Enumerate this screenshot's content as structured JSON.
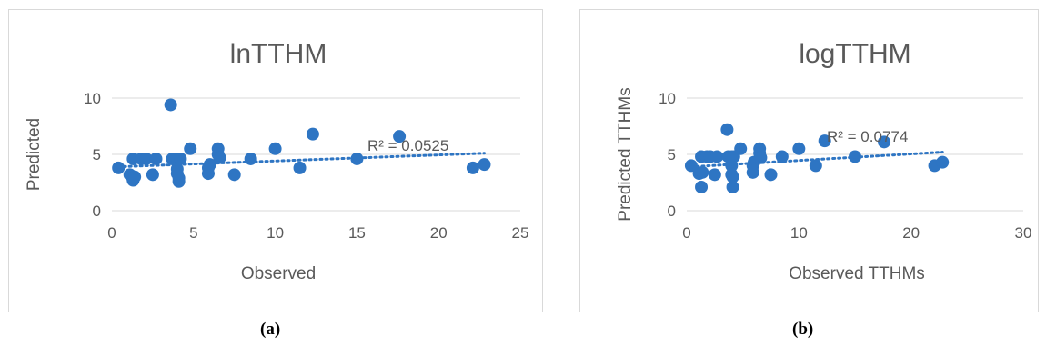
{
  "chart_data": [
    {
      "type": "scatter",
      "title": "lnTTHM",
      "xlabel": "Observed",
      "ylabel": "Predicted",
      "xlim": [
        0,
        25
      ],
      "ylim": [
        0,
        10
      ],
      "xticks": [
        "0",
        "5",
        "10",
        "15",
        "20",
        "25"
      ],
      "yticks": [
        "0",
        "5",
        "10"
      ],
      "grid": true,
      "color": "#2e75c3",
      "trendline": {
        "type": "linear",
        "style": "dotted",
        "x": [
          0.4,
          22.8
        ],
        "y": [
          3.9,
          5.1
        ]
      },
      "annotation": "R² = 0.0525",
      "caption": "(a)",
      "points": [
        {
          "x": 0.4,
          "y": 3.8
        },
        {
          "x": 1.1,
          "y": 3.2
        },
        {
          "x": 1.3,
          "y": 4.6
        },
        {
          "x": 1.3,
          "y": 2.7
        },
        {
          "x": 1.4,
          "y": 3.0
        },
        {
          "x": 1.8,
          "y": 4.6
        },
        {
          "x": 2.1,
          "y": 4.6
        },
        {
          "x": 2.5,
          "y": 3.2
        },
        {
          "x": 2.7,
          "y": 4.6
        },
        {
          "x": 3.6,
          "y": 9.4
        },
        {
          "x": 3.7,
          "y": 4.6
        },
        {
          "x": 4.0,
          "y": 4.6
        },
        {
          "x": 4.0,
          "y": 3.3
        },
        {
          "x": 4.0,
          "y": 3.7
        },
        {
          "x": 4.1,
          "y": 2.9
        },
        {
          "x": 4.1,
          "y": 2.6
        },
        {
          "x": 4.2,
          "y": 4.6
        },
        {
          "x": 4.8,
          "y": 5.5
        },
        {
          "x": 5.9,
          "y": 3.3
        },
        {
          "x": 5.9,
          "y": 3.8
        },
        {
          "x": 6.0,
          "y": 4.1
        },
        {
          "x": 6.5,
          "y": 5.5
        },
        {
          "x": 6.5,
          "y": 5.0
        },
        {
          "x": 6.6,
          "y": 4.7
        },
        {
          "x": 7.5,
          "y": 3.2
        },
        {
          "x": 8.5,
          "y": 4.6
        },
        {
          "x": 10.0,
          "y": 5.5
        },
        {
          "x": 11.5,
          "y": 3.8
        },
        {
          "x": 12.3,
          "y": 6.8
        },
        {
          "x": 15.0,
          "y": 4.6
        },
        {
          "x": 17.6,
          "y": 6.6
        },
        {
          "x": 22.1,
          "y": 3.8
        },
        {
          "x": 22.8,
          "y": 4.1
        }
      ]
    },
    {
      "type": "scatter",
      "title": "logTTHM",
      "xlabel": "Observed TTHMs",
      "ylabel": "Predicted TTHMs",
      "xlim": [
        0,
        30
      ],
      "ylim": [
        0,
        10
      ],
      "xticks": [
        "0",
        "10",
        "20",
        "30"
      ],
      "yticks": [
        "0",
        "5",
        "10"
      ],
      "grid": true,
      "color": "#2e75c3",
      "trendline": {
        "type": "linear",
        "style": "dotted",
        "x": [
          0.4,
          22.8
        ],
        "y": [
          3.9,
          5.2
        ]
      },
      "annotation": "R² = 0.0774",
      "caption": "(b)",
      "points": [
        {
          "x": 0.4,
          "y": 4.0
        },
        {
          "x": 1.1,
          "y": 3.3
        },
        {
          "x": 1.3,
          "y": 4.8
        },
        {
          "x": 1.3,
          "y": 2.1
        },
        {
          "x": 1.4,
          "y": 3.4
        },
        {
          "x": 1.8,
          "y": 4.8
        },
        {
          "x": 2.1,
          "y": 4.8
        },
        {
          "x": 2.5,
          "y": 3.2
        },
        {
          "x": 2.7,
          "y": 4.8
        },
        {
          "x": 3.6,
          "y": 7.2
        },
        {
          "x": 3.7,
          "y": 4.8
        },
        {
          "x": 4.0,
          "y": 4.8
        },
        {
          "x": 4.0,
          "y": 3.2
        },
        {
          "x": 4.0,
          "y": 4.0
        },
        {
          "x": 4.1,
          "y": 2.1
        },
        {
          "x": 4.1,
          "y": 3.0
        },
        {
          "x": 4.2,
          "y": 4.8
        },
        {
          "x": 4.8,
          "y": 5.5
        },
        {
          "x": 5.9,
          "y": 3.4
        },
        {
          "x": 5.9,
          "y": 4.0
        },
        {
          "x": 6.0,
          "y": 4.3
        },
        {
          "x": 6.5,
          "y": 5.5
        },
        {
          "x": 6.5,
          "y": 5.1
        },
        {
          "x": 6.6,
          "y": 4.7
        },
        {
          "x": 7.5,
          "y": 3.2
        },
        {
          "x": 8.5,
          "y": 4.8
        },
        {
          "x": 10.0,
          "y": 5.5
        },
        {
          "x": 11.5,
          "y": 4.0
        },
        {
          "x": 12.3,
          "y": 6.2
        },
        {
          "x": 15.0,
          "y": 4.8
        },
        {
          "x": 17.6,
          "y": 6.1
        },
        {
          "x": 22.1,
          "y": 4.0
        },
        {
          "x": 22.8,
          "y": 4.3
        }
      ]
    }
  ]
}
